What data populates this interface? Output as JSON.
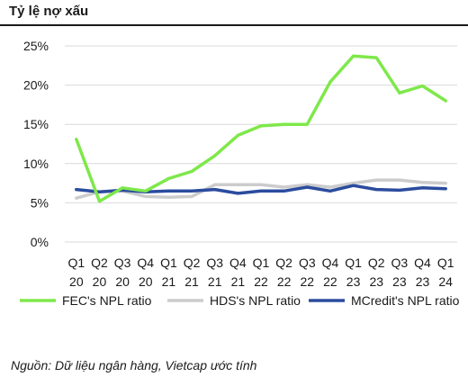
{
  "header": {
    "title": "Tỷ lệ nợ xấu"
  },
  "source": "Nguồn: Dữ liệu ngân hàng, Vietcap ước tính",
  "chart_data": {
    "type": "line",
    "title": "Tỷ lệ nợ xấu",
    "xlabel": "",
    "ylabel": "",
    "ylim": [
      0,
      25
    ],
    "yticks": [
      0,
      5,
      10,
      15,
      20,
      25
    ],
    "ytick_labels": [
      "0%",
      "5%",
      "10%",
      "15%",
      "20%",
      "25%"
    ],
    "grid": true,
    "legend_position": "bottom",
    "categories": [
      {
        "q": "Q1",
        "y": "20"
      },
      {
        "q": "Q2",
        "y": "20"
      },
      {
        "q": "Q3",
        "y": "20"
      },
      {
        "q": "Q4",
        "y": "20"
      },
      {
        "q": "Q1",
        "y": "21"
      },
      {
        "q": "Q2",
        "y": "21"
      },
      {
        "q": "Q3",
        "y": "21"
      },
      {
        "q": "Q4",
        "y": "21"
      },
      {
        "q": "Q1",
        "y": "22"
      },
      {
        "q": "Q2",
        "y": "22"
      },
      {
        "q": "Q3",
        "y": "22"
      },
      {
        "q": "Q4",
        "y": "22"
      },
      {
        "q": "Q1",
        "y": "23"
      },
      {
        "q": "Q2",
        "y": "23"
      },
      {
        "q": "Q3",
        "y": "23"
      },
      {
        "q": "Q4",
        "y": "23"
      },
      {
        "q": "Q1",
        "y": "24"
      }
    ],
    "series": [
      {
        "name": "FEC's NPL ratio",
        "color": "#7ee84a",
        "values": [
          13.1,
          5.2,
          6.9,
          6.5,
          8.1,
          9.0,
          11.0,
          13.6,
          14.8,
          15.0,
          15.0,
          20.4,
          23.7,
          23.5,
          19.0,
          19.9,
          18.0
        ]
      },
      {
        "name": "HDS's NPL ratio",
        "color": "#cccccc",
        "values": [
          5.6,
          6.4,
          6.5,
          5.8,
          5.7,
          5.8,
          7.3,
          7.3,
          7.3,
          7.0,
          7.3,
          7.0,
          7.5,
          7.9,
          7.9,
          7.6,
          7.5
        ]
      },
      {
        "name": "MCredit's NPL ratio",
        "color": "#2b4c9e",
        "values": [
          6.7,
          6.4,
          6.6,
          6.4,
          6.5,
          6.5,
          6.7,
          6.2,
          6.5,
          6.5,
          7.0,
          6.5,
          7.2,
          6.7,
          6.6,
          6.9,
          6.8
        ]
      }
    ]
  }
}
